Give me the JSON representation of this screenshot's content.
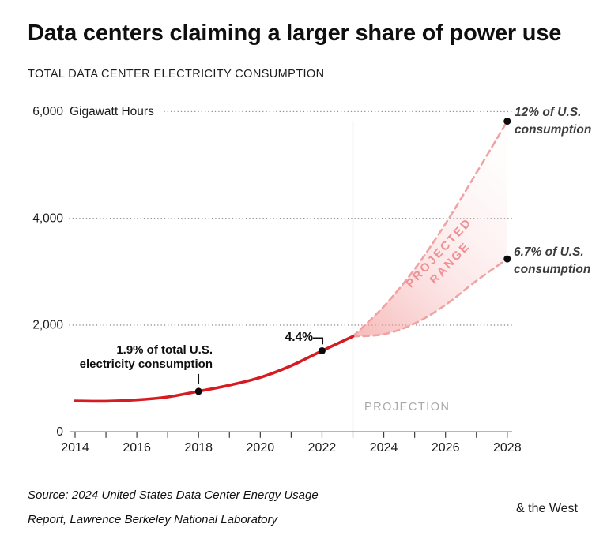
{
  "header": {
    "title": "Data centers claiming a larger share of power use",
    "subtitle": "TOTAL DATA CENTER ELECTRICITY CONSUMPTION"
  },
  "colors": {
    "line_red": "#d61c22",
    "projection_pink": "#f2a2a2",
    "band_text": "#ee9096",
    "band_fill_strong": "#f0908f",
    "band_fill_mid": "#f7bcbc",
    "band_fill_light": "#fdecec",
    "muted_gray": "#a9a9a9",
    "boundary_gray": "#c2c2c2",
    "grid_gray": "#8f8f8f",
    "axis_ink": "#3c3c3c",
    "marker_black": "#0b0b0b",
    "ink": "#111111"
  },
  "chart_data": {
    "type": "line",
    "title": "Data centers claiming a larger share of power use",
    "subtitle": "TOTAL DATA CENTER ELECTRICITY CONSUMPTION",
    "unit_label": "Gigawatt Hours",
    "ylim": [
      0,
      6000
    ],
    "xlim": [
      2014,
      2028
    ],
    "grid": "dotted horizontal gridlines at 2000/4000/6000",
    "projection_boundary_year": 2023,
    "y_ticks": [
      {
        "value": 6000,
        "label": "6,000"
      },
      {
        "value": 4000,
        "label": "4,000"
      },
      {
        "value": 2000,
        "label": "2,000"
      },
      {
        "value": 0,
        "label": "0"
      }
    ],
    "x_ticks": [
      2014,
      2015,
      2016,
      2017,
      2018,
      2019,
      2020,
      2021,
      2022,
      2023,
      2024,
      2025,
      2026,
      2027,
      2028
    ],
    "x_tick_labels": [
      {
        "year": 2014,
        "label": "2014"
      },
      {
        "year": 2016,
        "label": "2016"
      },
      {
        "year": 2018,
        "label": "2018"
      },
      {
        "year": 2020,
        "label": "2020"
      },
      {
        "year": 2022,
        "label": "2022"
      },
      {
        "year": 2024,
        "label": "2024"
      },
      {
        "year": 2026,
        "label": "2026"
      },
      {
        "year": 2028,
        "label": "2028"
      }
    ],
    "series": [
      {
        "name": "historical",
        "style": "solid",
        "x": [
          2014,
          2015,
          2016,
          2017,
          2018,
          2019,
          2020,
          2021,
          2022,
          2023
        ],
        "values": [
          580,
          575,
          600,
          655,
          760,
          875,
          1020,
          1240,
          1520,
          1790
        ]
      },
      {
        "name": "projection-high",
        "style": "dashed",
        "x": [
          2023,
          2024,
          2025,
          2026,
          2027,
          2028
        ],
        "values": [
          1790,
          2350,
          3050,
          3900,
          4850,
          5820
        ]
      },
      {
        "name": "projection-low",
        "style": "dashed",
        "x": [
          2023,
          2024,
          2025,
          2026,
          2027,
          2028
        ],
        "values": [
          1790,
          1830,
          2030,
          2380,
          2830,
          3240
        ]
      }
    ],
    "markers": [
      {
        "year": 2018,
        "value": 760
      },
      {
        "year": 2022,
        "value": 1520
      },
      {
        "year": 2028,
        "value": 5820
      },
      {
        "year": 2028,
        "value": 3240
      }
    ]
  },
  "annotations": {
    "point_2018": {
      "line1": "1.9% of total U.S.",
      "line2": "electricity consumption",
      "year": 2018,
      "value": 760
    },
    "point_2022": {
      "label": "4.4%",
      "year": 2022,
      "value": 1520
    },
    "band": {
      "line1": "PROJECTED",
      "line2": "RANGE"
    },
    "projection_label": "PROJECTION",
    "high_end": {
      "line1": "12% of U.S.",
      "line2": "consumption",
      "year": 2028,
      "value": 5820
    },
    "low_end": {
      "line1": "6.7% of U.S.",
      "line2": "consumption",
      "year": 2028,
      "value": 3240
    }
  },
  "footer": {
    "source_line1": "Source: 2024 United States Data Center Energy Usage",
    "source_line2": "Report, Lawrence Berkeley National Laboratory",
    "logo": "& the West"
  }
}
